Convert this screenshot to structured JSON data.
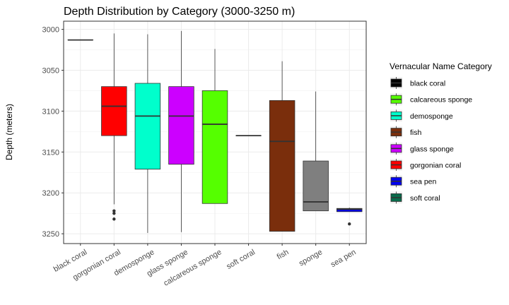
{
  "chart_data": {
    "type": "boxplot",
    "title": "Depth Distribution by Category (3000-3250 m)",
    "xlabel": "",
    "ylabel": "Depth (meters)",
    "y_reversed": true,
    "ylim": [
      2990,
      3262
    ],
    "y_ticks": [
      3000,
      3050,
      3100,
      3150,
      3200,
      3250
    ],
    "grid": true,
    "legend_position": "right",
    "categories": [
      "black coral",
      "gorgonian coral",
      "demosponge",
      "glass sponge",
      "calcareous sponge",
      "soft coral",
      "fish",
      "sponge",
      "sea pen"
    ],
    "boxes": [
      {
        "category": "black coral",
        "series": "black coral",
        "min": 3013,
        "q1": 3013,
        "median": 3013,
        "q3": 3013,
        "max": 3013,
        "outliers": []
      },
      {
        "category": "gorgonian coral",
        "series": "gorgonian coral",
        "min": 3005,
        "q1": 3070,
        "median": 3094,
        "q3": 3130,
        "max": 3214,
        "outliers": [
          3222,
          3225,
          3232
        ]
      },
      {
        "category": "demosponge",
        "series": "demosponge",
        "min": 3006,
        "q1": 3066,
        "median": 3106,
        "q3": 3171,
        "max": 3249,
        "outliers": []
      },
      {
        "category": "glass sponge",
        "series": "glass sponge",
        "min": 3002,
        "q1": 3070,
        "median": 3106,
        "q3": 3165,
        "max": 3248,
        "outliers": []
      },
      {
        "category": "calcareous sponge",
        "series": "calcareous sponge",
        "min": 3024,
        "q1": 3075,
        "median": 3116,
        "q3": 3213,
        "max": 3213,
        "outliers": []
      },
      {
        "category": "soft coral",
        "series": "soft coral",
        "min": 3130,
        "q1": 3130,
        "median": 3130,
        "q3": 3130,
        "max": 3130,
        "outliers": []
      },
      {
        "category": "fish",
        "series": "fish",
        "min": 3039,
        "q1": 3087,
        "median": 3137,
        "q3": 3247,
        "max": 3247,
        "outliers": []
      },
      {
        "category": "sponge",
        "series": "sponge",
        "min": 3076,
        "q1": 3161,
        "median": 3211,
        "q3": 3222,
        "max": 3222,
        "outliers": []
      },
      {
        "category": "sea pen",
        "series": "sea pen",
        "min": 3218,
        "q1": 3219,
        "median": 3220,
        "q3": 3223,
        "max": 3223,
        "outliers": [
          3238
        ]
      }
    ],
    "legend": {
      "title": "Vernacular Name Category",
      "entries": [
        {
          "label": "black coral",
          "color": "#000000"
        },
        {
          "label": "calcareous sponge",
          "color": "#55ff00"
        },
        {
          "label": "demosponge",
          "color": "#00ffcc"
        },
        {
          "label": "fish",
          "color": "#7a2e0c"
        },
        {
          "label": "glass sponge",
          "color": "#cc00ff"
        },
        {
          "label": "gorgonian coral",
          "color": "#ff0000"
        },
        {
          "label": "sea pen",
          "color": "#0000ee"
        },
        {
          "label": "soft coral",
          "color": "#0a6b4b"
        }
      ]
    },
    "colors": {
      "black coral": "#000000",
      "gorgonian coral": "#ff0000",
      "demosponge": "#00ffcc",
      "glass sponge": "#cc00ff",
      "calcareous sponge": "#55ff00",
      "soft coral": "#0a6b4b",
      "fish": "#7a2e0c",
      "sponge": "#7f7f7f",
      "sea pen": "#0000ee"
    }
  }
}
